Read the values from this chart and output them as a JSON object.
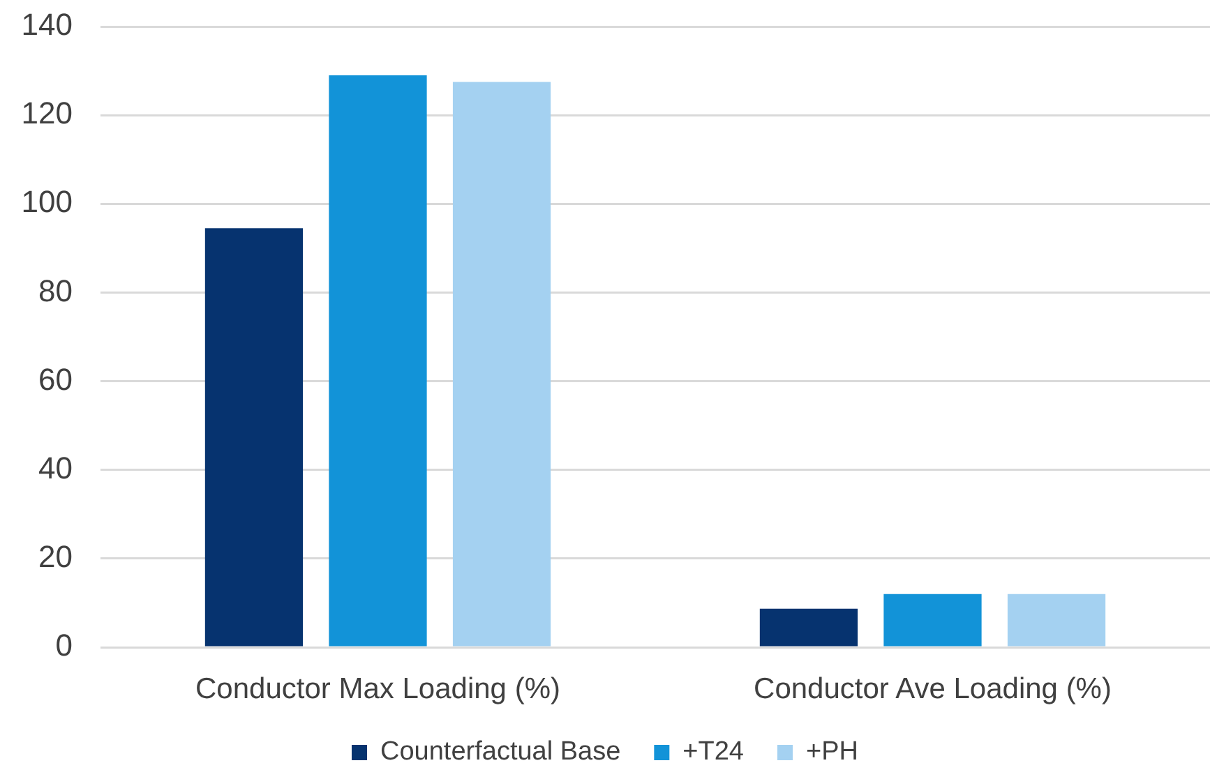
{
  "chart_data": {
    "type": "bar",
    "categories": [
      "Conductor Max Loading (%)",
      "Conductor Ave Loading (%)"
    ],
    "series": [
      {
        "name": "Counterfactual Base",
        "color": "#06336f",
        "values": [
          94.5,
          8.7
        ]
      },
      {
        "name": "+T24",
        "color": "#1293d8",
        "values": [
          129,
          12
        ]
      },
      {
        "name": "+PH",
        "color": "#a4d1f1",
        "values": [
          127.5,
          12
        ]
      }
    ],
    "ylim": [
      0,
      140
    ],
    "yticks": [
      0,
      20,
      40,
      60,
      80,
      100,
      120,
      140
    ],
    "grid": "y",
    "legend": "bottom"
  }
}
